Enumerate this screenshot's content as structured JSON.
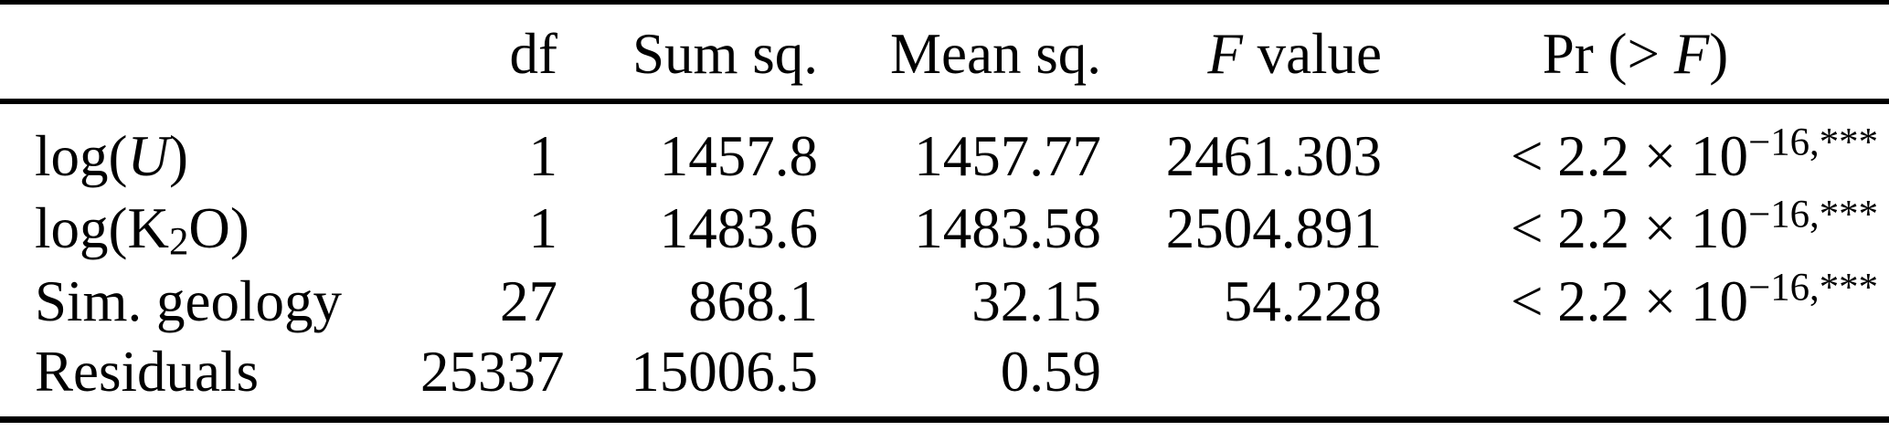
{
  "page": {
    "background_color": "#ffffff",
    "text_color": "#000000",
    "rule_color": "#000000"
  },
  "table": {
    "header": [
      {
        "segments": []
      },
      {
        "segments": [
          {
            "t": "df"
          }
        ]
      },
      {
        "segments": [
          {
            "t": "Sum sq."
          }
        ]
      },
      {
        "segments": [
          {
            "t": "Mean sq."
          }
        ]
      },
      {
        "segments": [
          {
            "t": "F",
            "s": "i"
          },
          {
            "t": " value"
          }
        ]
      },
      {
        "segments": [
          {
            "t": "Pr (> "
          },
          {
            "t": "F",
            "s": "i"
          },
          {
            "t": ")"
          }
        ]
      }
    ],
    "rows": [
      {
        "cells": [
          {
            "segments": [
              {
                "t": "log("
              },
              {
                "t": "U",
                "s": "i"
              },
              {
                "t": ")"
              }
            ]
          },
          {
            "segments": [
              {
                "t": "1"
              }
            ]
          },
          {
            "segments": [
              {
                "t": "1457.8"
              }
            ]
          },
          {
            "segments": [
              {
                "t": "1457.77"
              }
            ]
          },
          {
            "segments": [
              {
                "t": "2461.303"
              }
            ]
          },
          {
            "segments": [
              {
                "t": "< 2.2 × 10"
              },
              {
                "t": "−16,***",
                "s": "sup"
              }
            ]
          }
        ]
      },
      {
        "cells": [
          {
            "segments": [
              {
                "t": "log(K"
              },
              {
                "t": "2",
                "s": "sub"
              },
              {
                "t": "O)"
              }
            ]
          },
          {
            "segments": [
              {
                "t": "1"
              }
            ]
          },
          {
            "segments": [
              {
                "t": "1483.6"
              }
            ]
          },
          {
            "segments": [
              {
                "t": "1483.58"
              }
            ]
          },
          {
            "segments": [
              {
                "t": "2504.891"
              }
            ]
          },
          {
            "segments": [
              {
                "t": "< 2.2 × 10"
              },
              {
                "t": "−16,***",
                "s": "sup"
              }
            ]
          }
        ]
      },
      {
        "cells": [
          {
            "segments": [
              {
                "t": "Sim. geology"
              }
            ]
          },
          {
            "segments": [
              {
                "t": "27"
              }
            ]
          },
          {
            "segments": [
              {
                "t": "868.1"
              }
            ]
          },
          {
            "segments": [
              {
                "t": "32.15"
              }
            ]
          },
          {
            "segments": [
              {
                "t": "54.228"
              }
            ]
          },
          {
            "segments": [
              {
                "t": "< 2.2 × 10"
              },
              {
                "t": "−16,***",
                "s": "sup"
              }
            ]
          }
        ]
      },
      {
        "cells": [
          {
            "segments": [
              {
                "t": "Residuals"
              }
            ]
          },
          {
            "segments": [
              {
                "t": "25337"
              }
            ]
          },
          {
            "segments": [
              {
                "t": "15006.5"
              }
            ]
          },
          {
            "segments": [
              {
                "t": "0.59"
              }
            ]
          },
          {
            "segments": []
          },
          {
            "segments": []
          }
        ]
      }
    ]
  },
  "chart_data": {
    "type": "table",
    "columns": [
      "",
      "df",
      "Sum sq.",
      "Mean sq.",
      "F value",
      "Pr(>F)"
    ],
    "rows": [
      [
        "log(U)",
        1,
        1457.8,
        1457.77,
        2461.303,
        "< 2.2 × 10^−16, ***"
      ],
      [
        "log(K2O)",
        1,
        1483.6,
        1483.58,
        2504.891,
        "< 2.2 × 10^−16, ***"
      ],
      [
        "Sim. geology",
        27,
        868.1,
        32.15,
        54.228,
        "< 2.2 × 10^−16, ***"
      ],
      [
        "Residuals",
        25337,
        15006.5,
        0.59,
        "",
        ""
      ]
    ]
  }
}
